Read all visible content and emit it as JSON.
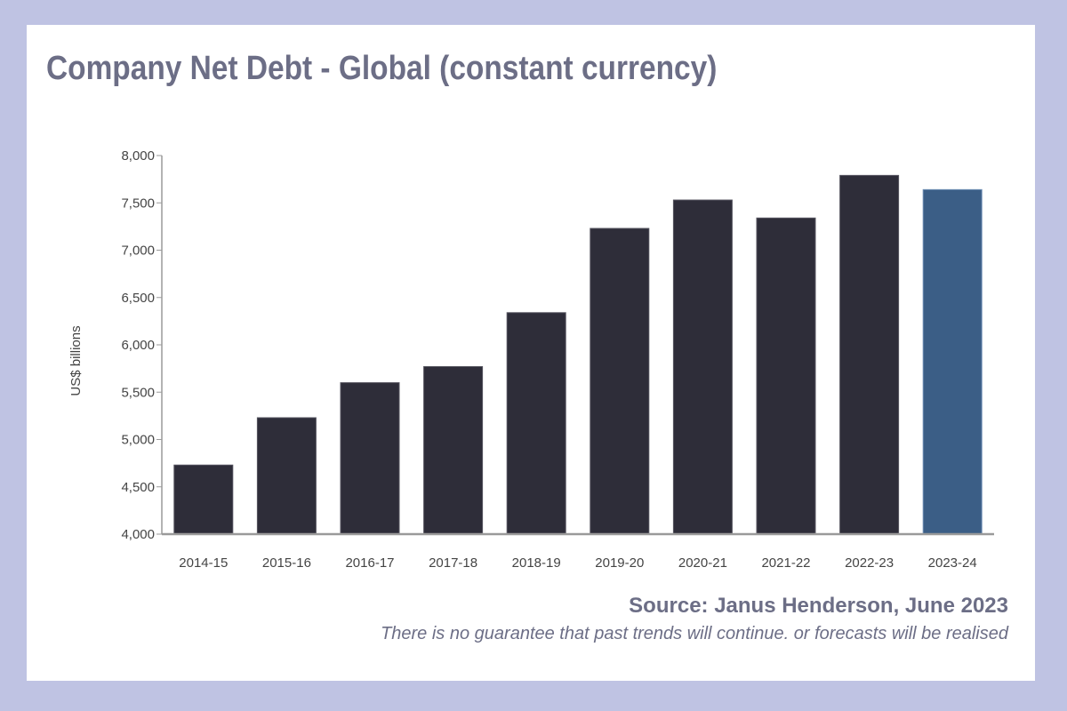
{
  "page": {
    "title": "Company Net Debt - Global (constant currency)",
    "source": "Source: Janus Henderson, June 2023",
    "disclaimer": "There is no guarantee that past trends will continue. or forecasts will be realised"
  },
  "colors": {
    "background": "#bfc3e3",
    "card": "#ffffff",
    "text": "#6c6e86",
    "bar": "#2e2d39",
    "highlight_bar": "#3b5e86",
    "axis": "#9a9a9a"
  },
  "chart_data": {
    "type": "bar",
    "categories": [
      "2014-15",
      "2015-16",
      "2016-17",
      "2017-18",
      "2018-19",
      "2019-20",
      "2020-21",
      "2021-22",
      "2022-23",
      "2023-24"
    ],
    "values": [
      4730,
      5230,
      5600,
      5770,
      6340,
      7230,
      7530,
      7340,
      7790,
      7640
    ],
    "highlight_index": 9,
    "title": "Company Net Debt - Global (constant currency)",
    "xlabel": "",
    "ylabel": "US$ billions",
    "ylim": [
      4000,
      8000
    ],
    "yticks": [
      4000,
      4500,
      5000,
      5500,
      6000,
      6500,
      7000,
      7500,
      8000
    ],
    "ytick_labels": [
      "4,000",
      "4,500",
      "5,000",
      "5,500",
      "6,000",
      "6,500",
      "7,000",
      "7,500",
      "8,000"
    ],
    "grid": false,
    "legend": "none"
  }
}
